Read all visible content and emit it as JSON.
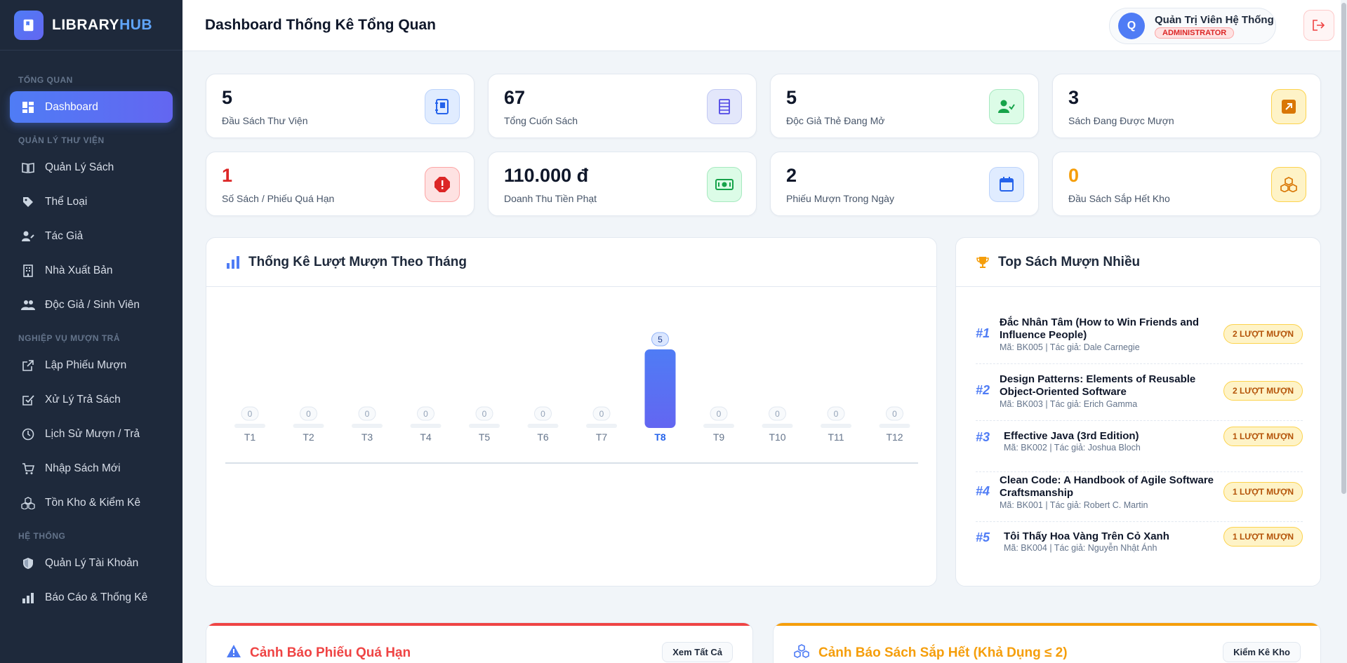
{
  "brand": {
    "part1": "LIBRARY",
    "part2": "HUB"
  },
  "sidebar": {
    "sections": [
      {
        "label": "TỔNG QUAN"
      },
      {
        "label": "QUẢN LÝ THƯ VIỆN"
      },
      {
        "label": "NGHIỆP VỤ MƯỢN TRẢ"
      },
      {
        "label": "HỆ THỐNG"
      }
    ],
    "items": [
      {
        "label": "Dashboard",
        "icon": "dashboard-icon"
      },
      {
        "label": "Quản Lý Sách",
        "icon": "book-open-icon"
      },
      {
        "label": "Thể Loại",
        "icon": "tag-icon"
      },
      {
        "label": "Tác Giả",
        "icon": "user-pen-icon"
      },
      {
        "label": "Nhà Xuất Bản",
        "icon": "building-icon"
      },
      {
        "label": "Độc Giả / Sinh Viên",
        "icon": "users-icon"
      },
      {
        "label": "Lập Phiếu Mượn",
        "icon": "external-link-icon"
      },
      {
        "label": "Xử Lý Trả Sách",
        "icon": "check-square-icon"
      },
      {
        "label": "Lịch Sử Mượn / Trả",
        "icon": "clock-icon"
      },
      {
        "label": "Nhập Sách Mới",
        "icon": "cart-icon"
      },
      {
        "label": "Tồn Kho & Kiểm Kê",
        "icon": "boxes-icon"
      },
      {
        "label": "Quản Lý Tài Khoản",
        "icon": "shield-icon"
      },
      {
        "label": "Báo Cáo & Thống Kê",
        "icon": "bar-chart-icon"
      }
    ]
  },
  "header": {
    "title": "Dashboard Thống Kê Tổng Quan",
    "user": {
      "initial": "Q",
      "name": "Quản Trị Viên Hệ Thống",
      "role": "ADMINISTRATOR"
    }
  },
  "stats": [
    {
      "value": "5",
      "label": "Đầu Sách Thư Viện",
      "color": "#0f172a",
      "icon_bg": "#e0ecff",
      "icon_border": "#bcd3fb",
      "icon_color": "#2563eb",
      "icon": "notebook-icon"
    },
    {
      "value": "67",
      "label": "Tổng Cuốn Sách",
      "color": "#0f172a",
      "icon_bg": "#e3e7fb",
      "icon_border": "#c2c9f3",
      "icon_color": "#4f46e5",
      "icon": "book-stack-icon"
    },
    {
      "value": "5",
      "label": "Độc Giả Thẻ Đang Mở",
      "color": "#0f172a",
      "icon_bg": "#dcfce7",
      "icon_border": "#a7e9c0",
      "icon_color": "#16a34a",
      "icon": "user-check-icon"
    },
    {
      "value": "3",
      "label": "Sách Đang Được Mượn",
      "color": "#0f172a",
      "icon_bg": "#fef3c7",
      "icon_border": "#fcd34d",
      "icon_color": "#d97706",
      "icon": "arrow-out-icon"
    },
    {
      "value": "1",
      "label": "Số Sách / Phiếu Quá Hạn",
      "color": "#dc2626",
      "icon_bg": "#fee2e2",
      "icon_border": "#fca5a5",
      "icon_color": "#dc2626",
      "icon": "alert-octagon-icon"
    },
    {
      "value": "110.000 đ",
      "label": "Doanh Thu Tiền Phạt",
      "color": "#0f172a",
      "icon_bg": "#dcfce7",
      "icon_border": "#a7e9c0",
      "icon_color": "#16a34a",
      "icon": "money-icon"
    },
    {
      "value": "2",
      "label": "Phiếu Mượn Trong Ngày",
      "color": "#0f172a",
      "icon_bg": "#e0ecff",
      "icon_border": "#bcd3fb",
      "icon_color": "#2563eb",
      "icon": "calendar-icon"
    },
    {
      "value": "0",
      "label": "Đầu Sách Sắp Hết Kho",
      "color": "#f59e0b",
      "icon_bg": "#fef3c7",
      "icon_border": "#fcd34d",
      "icon_color": "#d97706",
      "icon": "cubes-icon"
    }
  ],
  "chart_panel": {
    "title": "Thống Kê Lượt Mượn Theo Tháng"
  },
  "chart_data": {
    "type": "bar",
    "categories": [
      "T1",
      "T2",
      "T3",
      "T4",
      "T5",
      "T6",
      "T7",
      "T8",
      "T9",
      "T10",
      "T11",
      "T12"
    ],
    "values": [
      0,
      0,
      0,
      0,
      0,
      0,
      0,
      5,
      0,
      0,
      0,
      0
    ],
    "ylim": [
      0,
      5
    ],
    "highlight_index": 7,
    "bar_color": "#4f7cf5"
  },
  "top_panel": {
    "title": "Top Sách Mượn Nhiều",
    "books": [
      {
        "rank": "#1",
        "title": "Đắc Nhân Tâm (How to Win Friends and Influence People)",
        "meta": "Mã: BK005 | Tác giả: Dale Carnegie",
        "badge": "2 LƯỢT MƯỢN"
      },
      {
        "rank": "#2",
        "title": "Design Patterns: Elements of Reusable Object-Oriented Software",
        "meta": "Mã: BK003 | Tác giả: Erich Gamma",
        "badge": "2 LƯỢT MƯỢN"
      },
      {
        "rank": "#3",
        "title": "Effective Java (3rd Edition)",
        "meta": "Mã: BK002 | Tác giả: Joshua Bloch",
        "badge": "1 LƯỢT MƯỢN"
      },
      {
        "rank": "#4",
        "title": "Clean Code: A Handbook of Agile Software Craftsmanship",
        "meta": "Mã: BK001 | Tác giả: Robert C. Martin",
        "badge": "1 LƯỢT MƯỢN"
      },
      {
        "rank": "#5",
        "title": "Tôi Thấy Hoa Vàng Trên Cỏ Xanh",
        "meta": "Mã: BK004 | Tác giả: Nguyễn Nhật Ánh",
        "badge": "1 LƯỢT MƯỢN"
      }
    ]
  },
  "overdue_panel": {
    "title": "Cảnh Báo Phiếu Quá Hạn",
    "button": "Xem Tất Cả",
    "color": "#dc2626"
  },
  "lowstock_panel": {
    "title": "Cảnh Báo Sách Sắp Hết (Khả Dụng ≤ 2)",
    "button": "Kiểm Kê Kho",
    "color": "#f59e0b"
  }
}
